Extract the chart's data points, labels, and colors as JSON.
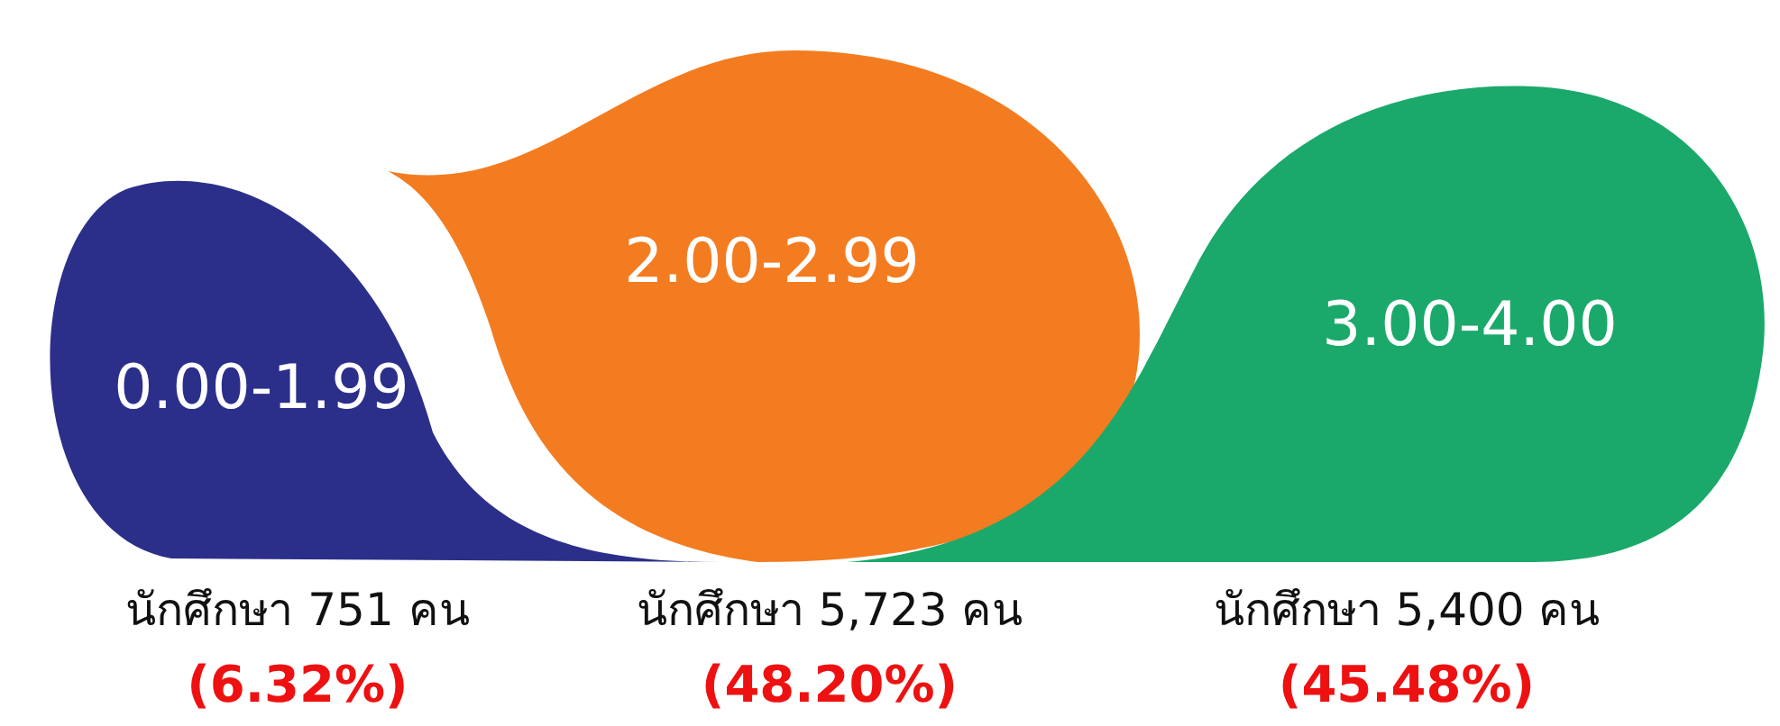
{
  "chart_data": {
    "type": "other",
    "categories": [
      "0.00-1.99",
      "2.00-2.99",
      "3.00-4.00"
    ],
    "colors": [
      "#2b2f8a",
      "#f47c20",
      "#1aa96b"
    ],
    "series": [
      {
        "values": [
          751,
          5723,
          5400
        ],
        "value_labels": [
          "นักศึกษา 751 คน",
          "นักศึกษา 5,723 คน",
          "นักศึกษา 5,400 คน"
        ],
        "color": "#111111"
      },
      {
        "values": [
          6.32,
          48.2,
          45.48
        ],
        "value_labels": [
          "(6.32%)",
          "(48.20%)",
          "(45.48%)"
        ],
        "color": "#ee1111"
      }
    ]
  }
}
